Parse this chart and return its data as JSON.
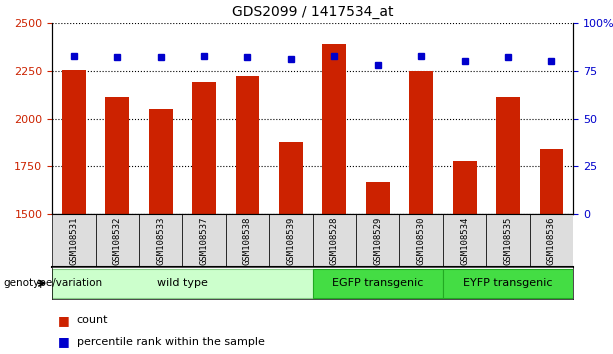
{
  "title": "GDS2099 / 1417534_at",
  "samples": [
    "GSM108531",
    "GSM108532",
    "GSM108533",
    "GSM108537",
    "GSM108538",
    "GSM108539",
    "GSM108528",
    "GSM108529",
    "GSM108530",
    "GSM108534",
    "GSM108535",
    "GSM108536"
  ],
  "counts": [
    2255,
    2115,
    2050,
    2190,
    2225,
    1880,
    2390,
    1670,
    2250,
    1780,
    2115,
    1840
  ],
  "percentiles": [
    83,
    82,
    82,
    83,
    82,
    81,
    83,
    78,
    83,
    80,
    82,
    80
  ],
  "ylim_left": [
    1500,
    2500
  ],
  "ylim_right": [
    0,
    100
  ],
  "yticks_left": [
    1500,
    1750,
    2000,
    2250,
    2500
  ],
  "yticks_right": [
    0,
    25,
    50,
    75,
    100
  ],
  "ytick_labels_right": [
    "0",
    "25",
    "50",
    "75",
    "100%"
  ],
  "bar_color": "#cc2200",
  "dot_color": "#0000cc",
  "bar_width": 0.55,
  "groups": [
    {
      "label": "wild type",
      "start": 0,
      "end": 6,
      "color": "#ccffcc",
      "border": "#88cc88"
    },
    {
      "label": "EGFP transgenic",
      "start": 6,
      "end": 9,
      "color": "#44dd44",
      "border": "#22aa22"
    },
    {
      "label": "EYFP transgenic",
      "start": 9,
      "end": 12,
      "color": "#44dd44",
      "border": "#22aa22"
    }
  ],
  "genotype_label": "genotype/variation",
  "legend_count_label": "count",
  "legend_percentile_label": "percentile rank within the sample",
  "grid_color": "#000000",
  "tick_color_left": "#cc2200",
  "tick_color_right": "#0000cc",
  "background_color": "#ffffff",
  "sample_bg_color": "#dddddd",
  "base_value": 1500,
  "fig_width": 6.13,
  "fig_height": 3.54,
  "dpi": 100
}
